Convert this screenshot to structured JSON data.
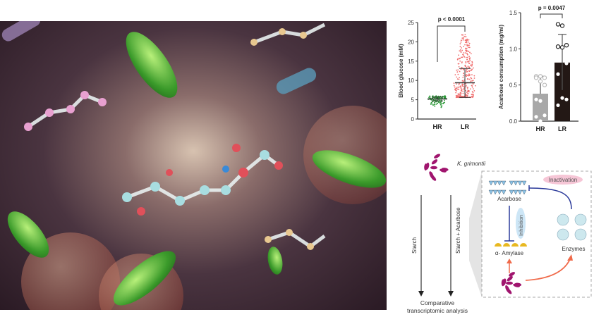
{
  "chart_data": [
    {
      "type": "scatter",
      "ylabel": "Blood glucose (mM)",
      "categories": [
        "HR",
        "LR"
      ],
      "ylim": [
        0,
        25
      ],
      "yticks": [
        0,
        5,
        10,
        15,
        20,
        25
      ],
      "annotation": "p < 0.0001",
      "series": [
        {
          "category": "HR",
          "mean": 5.2,
          "sd_low": 4.7,
          "sd_high": 5.7,
          "min": 3.0,
          "max": 6.0,
          "color": "#2e9a3a"
        },
        {
          "category": "LR",
          "mean": 9.4,
          "sd_low": 5.6,
          "sd_high": 13.1,
          "min": 5.6,
          "max": 22.0,
          "color": "#f07070"
        }
      ]
    },
    {
      "type": "bar",
      "ylabel": "Acarbose consumption (mg/ml)",
      "categories": [
        "HR",
        "LR"
      ],
      "ylim": [
        0,
        1.5
      ],
      "yticks": [
        "0.0",
        "0.5",
        "1.0",
        "1.5"
      ],
      "annotation": "p = 0.0047",
      "values": [
        0.38,
        0.81
      ],
      "error_high": [
        0.62,
        1.2
      ],
      "error_low": [
        0.38,
        0.43
      ],
      "colors": [
        "#a8a8a8",
        "#231815"
      ],
      "points": [
        [
          0.62,
          0.62,
          0.6,
          0.6,
          0.55,
          0.5,
          0.3,
          0.28,
          0.08,
          0.06,
          0.0
        ],
        [
          1.34,
          1.32,
          1.05,
          1.03,
          1.02,
          0.8,
          0.65,
          0.32,
          0.3,
          0.22
        ]
      ]
    }
  ],
  "diagram": {
    "organism": "K. grimontii",
    "left_arrow": "Starch",
    "right_arrow": "Starch + Acarbose",
    "outcome_line1": "Comparative",
    "outcome_line2": "transcriptomic analysis",
    "acarbose": "Acarbose",
    "inhibition": "Inhibition",
    "amylase": "α- Amylase",
    "inactivation": "Inactivation",
    "enzymes": "Enzymes",
    "colors": {
      "bacteria": "#a0156e",
      "inhibit": "#2b3a9a",
      "activate": "#f06a4a",
      "acarbose": "#8cc4e8",
      "enzyme": "#cde8ee"
    }
  }
}
